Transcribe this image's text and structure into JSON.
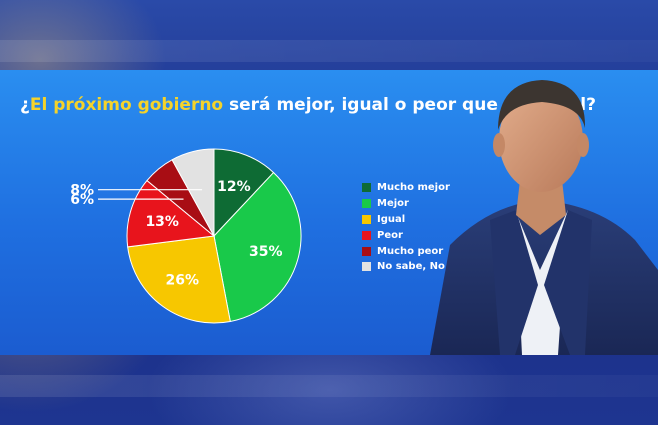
{
  "title": {
    "prefix": "¿",
    "highlight": "El próximo gobierno",
    "rest": " será mejor, igual o peor que el actual?"
  },
  "colors": {
    "highlight": "#f5d32a",
    "panel": "#2a8ef0"
  },
  "chart_data": {
    "type": "pie",
    "legend_position": "right",
    "slices": [
      {
        "label": "Mucho mejor",
        "value": 12,
        "display": "12%",
        "color": "#0e6b34"
      },
      {
        "label": "Mejor",
        "value": 35,
        "display": "35%",
        "color": "#19c94a"
      },
      {
        "label": "Igual",
        "value": 26,
        "display": "26%",
        "color": "#f7c700"
      },
      {
        "label": "Peor",
        "value": 13,
        "display": "13%",
        "color": "#e8141c"
      },
      {
        "label": "Mucho peor",
        "value": 6,
        "display": "6%",
        "color": "#a80d14"
      },
      {
        "label": "No sabe, No contesta",
        "value": 8,
        "display": "8%",
        "color": "#e2e2e2"
      }
    ]
  }
}
